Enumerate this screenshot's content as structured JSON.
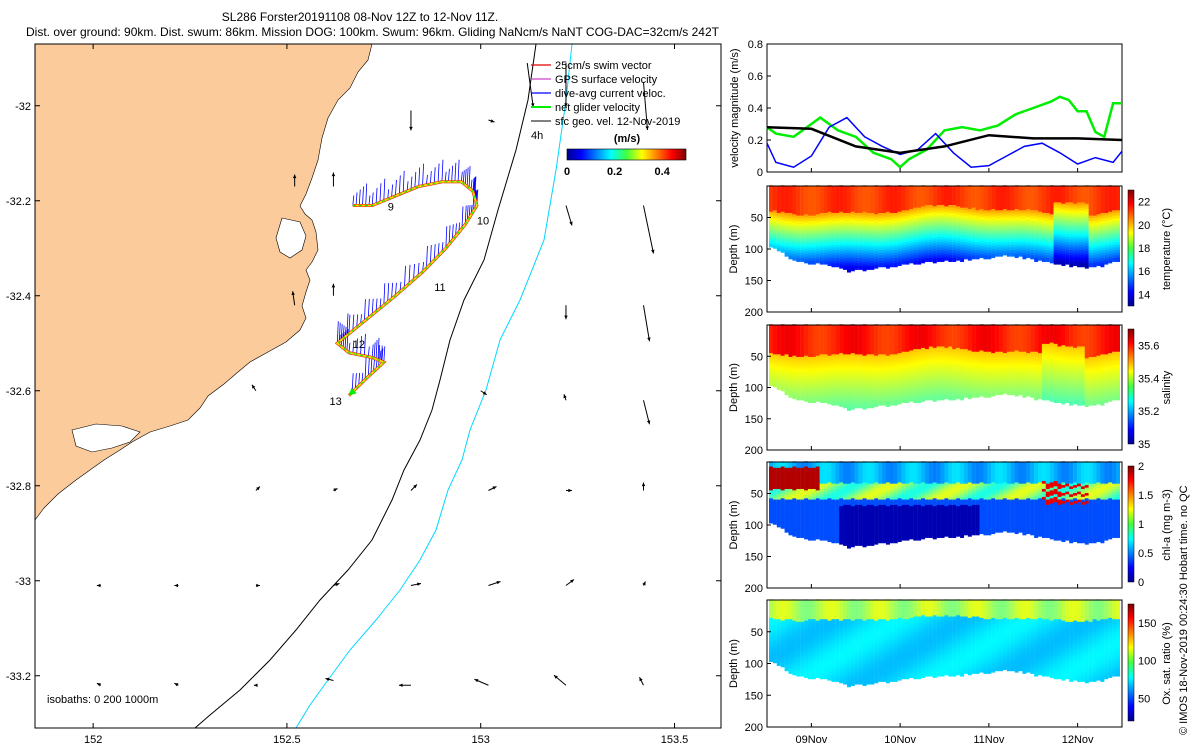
{
  "title": {
    "line1": "SL286 Forster20191108 08-Nov 12Z to 12-Nov 11Z.",
    "line2": "Dist. over ground: 90km. Dist. swum: 86km. Mission DOG: 100km. Swum: 96km. Gliding NaNcm/s NaNT COG-DAC=32cm/s 242T"
  },
  "credit": "© IMOS 18-Nov-2019 00:24:30 Hobart time. no QC",
  "colors": {
    "land": "#fbcb9b",
    "swim": "#e00000",
    "gps": "#d040d0",
    "dac": "#0000ff",
    "net": "#00ee00",
    "geo": "#000000",
    "isobath200": "#000000",
    "isobath1000": "#00d8ff"
  },
  "chart_data": [
    {
      "type": "map",
      "name": "glider track map",
      "xlim": [
        151.85,
        153.62
      ],
      "ylim": [
        -33.31,
        -31.87
      ],
      "xticks": [
        152,
        152.5,
        153,
        153.5
      ],
      "xtick_labels": [
        "152",
        "152.5",
        "153",
        "153.5"
      ],
      "yticks": [
        -32,
        -32.2,
        -32.4,
        -32.6,
        -32.8,
        -33,
        -33.2
      ],
      "ytick_labels": [
        "-32",
        "-32.2",
        "-32.4",
        "-32.6",
        "-32.8",
        "-33",
        "-33.2"
      ],
      "legend": [
        "25cm/s swim vector",
        "GPS surface velocity",
        "dive-avg current veloc.",
        "net glider velocity",
        "sfc geo. vel. 12-Nov-2019"
      ],
      "time_ref": "4h",
      "colorbar": {
        "title": "(m/s)",
        "ticks": [
          0,
          0.2,
          0.4
        ],
        "tick_labels": [
          "0",
          "0.2",
          "0.4"
        ],
        "range": [
          0,
          0.5
        ]
      },
      "isobath_label": "isobaths: 0   200   1000m",
      "day_labels": [
        {
          "text": "9",
          "lon": 152.76,
          "lat": -32.22
        },
        {
          "text": "10",
          "lon": 152.99,
          "lat": -32.25
        },
        {
          "text": "11",
          "lon": 152.88,
          "lat": -32.39
        },
        {
          "text": "12",
          "lon": 152.67,
          "lat": -32.51
        },
        {
          "text": "13",
          "lon": 152.61,
          "lat": -32.63
        }
      ],
      "track": [
        [
          152.67,
          -32.21
        ],
        [
          152.72,
          -32.21
        ],
        [
          152.78,
          -32.19
        ],
        [
          152.84,
          -32.17
        ],
        [
          152.9,
          -32.16
        ],
        [
          152.95,
          -32.16
        ],
        [
          152.98,
          -32.18
        ],
        [
          152.99,
          -32.21
        ],
        [
          152.96,
          -32.25
        ],
        [
          152.91,
          -32.3
        ],
        [
          152.85,
          -32.35
        ],
        [
          152.78,
          -32.4
        ],
        [
          152.72,
          -32.44
        ],
        [
          152.66,
          -32.48
        ],
        [
          152.63,
          -32.5
        ],
        [
          152.66,
          -32.52
        ],
        [
          152.72,
          -32.53
        ],
        [
          152.75,
          -32.54
        ],
        [
          152.71,
          -32.57
        ],
        [
          152.66,
          -32.61
        ]
      ],
      "geo_vectors": [
        {
          "lon": 152.82,
          "lat": -32.01,
          "u": 0.0,
          "v": -0.1
        },
        {
          "lon": 153.02,
          "lat": -32.03,
          "u": 0.03,
          "v": -0.01
        },
        {
          "lon": 153.12,
          "lat": -31.91,
          "u": 0.03,
          "v": -0.22
        },
        {
          "lon": 153.22,
          "lat": -31.91,
          "u": 0.0,
          "v": -0.22
        },
        {
          "lon": 153.42,
          "lat": -31.95,
          "u": 0.02,
          "v": -0.24
        },
        {
          "lon": 152.62,
          "lat": -32.17,
          "u": 0.0,
          "v": 0.07
        },
        {
          "lon": 152.52,
          "lat": -32.17,
          "u": 0.0,
          "v": 0.06
        },
        {
          "lon": 153.22,
          "lat": -32.21,
          "u": 0.03,
          "v": -0.1
        },
        {
          "lon": 153.42,
          "lat": -32.21,
          "u": 0.05,
          "v": -0.24
        },
        {
          "lon": 152.62,
          "lat": -32.4,
          "u": 0.0,
          "v": 0.06
        },
        {
          "lon": 152.52,
          "lat": -32.42,
          "u": -0.01,
          "v": 0.07
        },
        {
          "lon": 153.22,
          "lat": -32.42,
          "u": 0.0,
          "v": -0.07
        },
        {
          "lon": 153.42,
          "lat": -32.42,
          "u": 0.03,
          "v": -0.18
        },
        {
          "lon": 152.42,
          "lat": -32.6,
          "u": -0.02,
          "v": 0.03
        },
        {
          "lon": 153.0,
          "lat": -32.6,
          "u": 0.03,
          "v": -0.02
        },
        {
          "lon": 153.22,
          "lat": -32.62,
          "u": -0.01,
          "v": 0.03
        },
        {
          "lon": 153.42,
          "lat": -32.62,
          "u": 0.03,
          "v": -0.12
        },
        {
          "lon": 152.62,
          "lat": -32.81,
          "u": 0.02,
          "v": 0.01
        },
        {
          "lon": 152.82,
          "lat": -32.81,
          "u": 0.03,
          "v": 0.03
        },
        {
          "lon": 153.02,
          "lat": -32.81,
          "u": 0.04,
          "v": 0.02
        },
        {
          "lon": 152.42,
          "lat": -32.81,
          "u": 0.02,
          "v": 0.02
        },
        {
          "lon": 153.22,
          "lat": -32.81,
          "u": 0.03,
          "v": 0.0
        },
        {
          "lon": 153.42,
          "lat": -32.81,
          "u": 0.0,
          "v": 0.04
        },
        {
          "lon": 152.02,
          "lat": -33.01,
          "u": -0.02,
          "v": 0.0
        },
        {
          "lon": 152.22,
          "lat": -33.01,
          "u": -0.02,
          "v": 0.0
        },
        {
          "lon": 152.42,
          "lat": -33.01,
          "u": 0.02,
          "v": 0.0
        },
        {
          "lon": 152.62,
          "lat": -33.01,
          "u": 0.03,
          "v": 0.01
        },
        {
          "lon": 152.82,
          "lat": -33.01,
          "u": 0.05,
          "v": 0.01
        },
        {
          "lon": 153.02,
          "lat": -33.01,
          "u": 0.06,
          "v": 0.02
        },
        {
          "lon": 153.22,
          "lat": -33.01,
          "u": 0.04,
          "v": 0.03
        },
        {
          "lon": 153.42,
          "lat": -33.01,
          "u": 0.01,
          "v": 0.02
        },
        {
          "lon": 152.02,
          "lat": -33.22,
          "u": -0.02,
          "v": 0.01
        },
        {
          "lon": 152.22,
          "lat": -33.22,
          "u": -0.02,
          "v": 0.01
        },
        {
          "lon": 152.42,
          "lat": -33.22,
          "u": -0.01,
          "v": 0.0
        },
        {
          "lon": 152.62,
          "lat": -33.21,
          "u": -0.04,
          "v": 0.01
        },
        {
          "lon": 152.82,
          "lat": -33.22,
          "u": -0.06,
          "v": 0.0
        },
        {
          "lon": 153.02,
          "lat": -33.22,
          "u": -0.07,
          "v": 0.03
        },
        {
          "lon": 153.22,
          "lat": -33.22,
          "u": -0.06,
          "v": 0.05
        },
        {
          "lon": 153.42,
          "lat": -33.22,
          "u": -0.02,
          "v": 0.04
        }
      ]
    },
    {
      "type": "line",
      "name": "velocity magnitude",
      "ylabel": "velocity magnitude (m/s)",
      "ylim": [
        0,
        0.8
      ],
      "yticks": [
        0,
        0.2,
        0.4,
        0.6,
        0.8
      ],
      "ytick_labels": [
        "0",
        "0.2",
        "0.4",
        "0.6",
        "0.8"
      ],
      "xlim": [
        8.5,
        12.5
      ],
      "series": [
        {
          "name": "net glider velocity",
          "color": "green",
          "x": [
            8.5,
            8.6,
            8.8,
            9.0,
            9.1,
            9.3,
            9.5,
            9.7,
            9.9,
            10.0,
            10.1,
            10.3,
            10.5,
            10.7,
            10.9,
            11.1,
            11.3,
            11.5,
            11.7,
            11.8,
            11.9,
            12.0,
            12.1,
            12.2,
            12.3,
            12.4,
            12.5
          ],
          "values": [
            0.28,
            0.24,
            0.22,
            0.3,
            0.34,
            0.26,
            0.22,
            0.12,
            0.08,
            0.03,
            0.08,
            0.14,
            0.26,
            0.28,
            0.26,
            0.29,
            0.36,
            0.4,
            0.44,
            0.47,
            0.45,
            0.38,
            0.38,
            0.25,
            0.22,
            0.43,
            0.43
          ]
        },
        {
          "name": "dive-avg current veloc.",
          "color": "blue",
          "x": [
            8.5,
            8.6,
            8.8,
            9.0,
            9.2,
            9.4,
            9.6,
            9.8,
            10.0,
            10.2,
            10.4,
            10.6,
            10.8,
            11.0,
            11.2,
            11.4,
            11.6,
            11.8,
            12.0,
            12.2,
            12.4,
            12.5
          ],
          "values": [
            0.18,
            0.06,
            0.03,
            0.1,
            0.28,
            0.34,
            0.22,
            0.16,
            0.11,
            0.14,
            0.24,
            0.12,
            0.03,
            0.04,
            0.1,
            0.16,
            0.18,
            0.12,
            0.05,
            0.09,
            0.06,
            0.13
          ]
        },
        {
          "name": "sfc geo. vel.",
          "color": "black",
          "x": [
            8.5,
            9.0,
            9.5,
            10.0,
            10.5,
            11.0,
            11.5,
            12.0,
            12.5
          ],
          "values": [
            0.28,
            0.27,
            0.16,
            0.12,
            0.16,
            0.23,
            0.21,
            0.21,
            0.2
          ]
        }
      ]
    },
    {
      "type": "heatmap",
      "name": "temperature section",
      "ylabel": "Depth (m)",
      "ylim": [
        0,
        200
      ],
      "yticks": [
        50,
        100,
        150,
        200
      ],
      "ytick_labels": [
        "50",
        "100",
        "150",
        "200"
      ],
      "colorbar_label": "temperature (°C)",
      "clim": [
        13,
        23
      ],
      "colorbar_ticks": [
        14,
        16,
        18,
        20,
        22
      ],
      "colorbar_tick_labels": [
        "14",
        "16",
        "18",
        "20",
        "22"
      ],
      "max_depth_profile": [
        95,
        120,
        125,
        135,
        130,
        125,
        120,
        118,
        115,
        110,
        118,
        125,
        130,
        120
      ]
    },
    {
      "type": "heatmap",
      "name": "salinity section",
      "ylabel": "Depth (m)",
      "ylim": [
        0,
        200
      ],
      "yticks": [
        50,
        100,
        150,
        200
      ],
      "ytick_labels": [
        "50",
        "100",
        "150",
        "200"
      ],
      "colorbar_label": "salinity",
      "clim": [
        35,
        35.7
      ],
      "colorbar_ticks": [
        35,
        35.2,
        35.4,
        35.6
      ],
      "colorbar_tick_labels": [
        "35",
        "35.2",
        "35.4",
        "35.6"
      ],
      "max_depth_profile": [
        95,
        120,
        125,
        135,
        130,
        125,
        120,
        118,
        115,
        110,
        118,
        125,
        130,
        120
      ]
    },
    {
      "type": "heatmap",
      "name": "chlorophyll section",
      "ylabel": "Depth (m)",
      "ylim": [
        0,
        200
      ],
      "yticks": [
        50,
        100,
        150,
        200
      ],
      "ytick_labels": [
        "50",
        "100",
        "150",
        "200"
      ],
      "colorbar_label": "chl-a (mg m-3)",
      "clim": [
        0,
        2
      ],
      "colorbar_ticks": [
        0,
        0.5,
        1,
        1.5,
        2
      ],
      "colorbar_tick_labels": [
        "0",
        "0.5",
        "1",
        "1.5",
        "2"
      ],
      "max_depth_profile": [
        95,
        120,
        125,
        135,
        130,
        125,
        120,
        118,
        115,
        110,
        118,
        125,
        130,
        120
      ]
    },
    {
      "type": "heatmap",
      "name": "oxygen saturation section",
      "ylabel": "Depth (m)",
      "ylim": [
        0,
        200
      ],
      "yticks": [
        50,
        100,
        150,
        200
      ],
      "ytick_labels": [
        "50",
        "100",
        "150",
        "200"
      ],
      "colorbar_label": "Ox. sat. ratio (%)",
      "clim": [
        20,
        175
      ],
      "colorbar_ticks": [
        50,
        100,
        150
      ],
      "colorbar_tick_labels": [
        "50",
        "100",
        "150"
      ],
      "xticks": [
        9,
        10,
        11,
        12
      ],
      "xtick_labels": [
        "09Nov",
        "10Nov",
        "11Nov",
        "12Nov"
      ],
      "max_depth_profile": [
        95,
        120,
        125,
        135,
        130,
        125,
        120,
        118,
        115,
        110,
        118,
        125,
        130,
        120
      ]
    }
  ]
}
